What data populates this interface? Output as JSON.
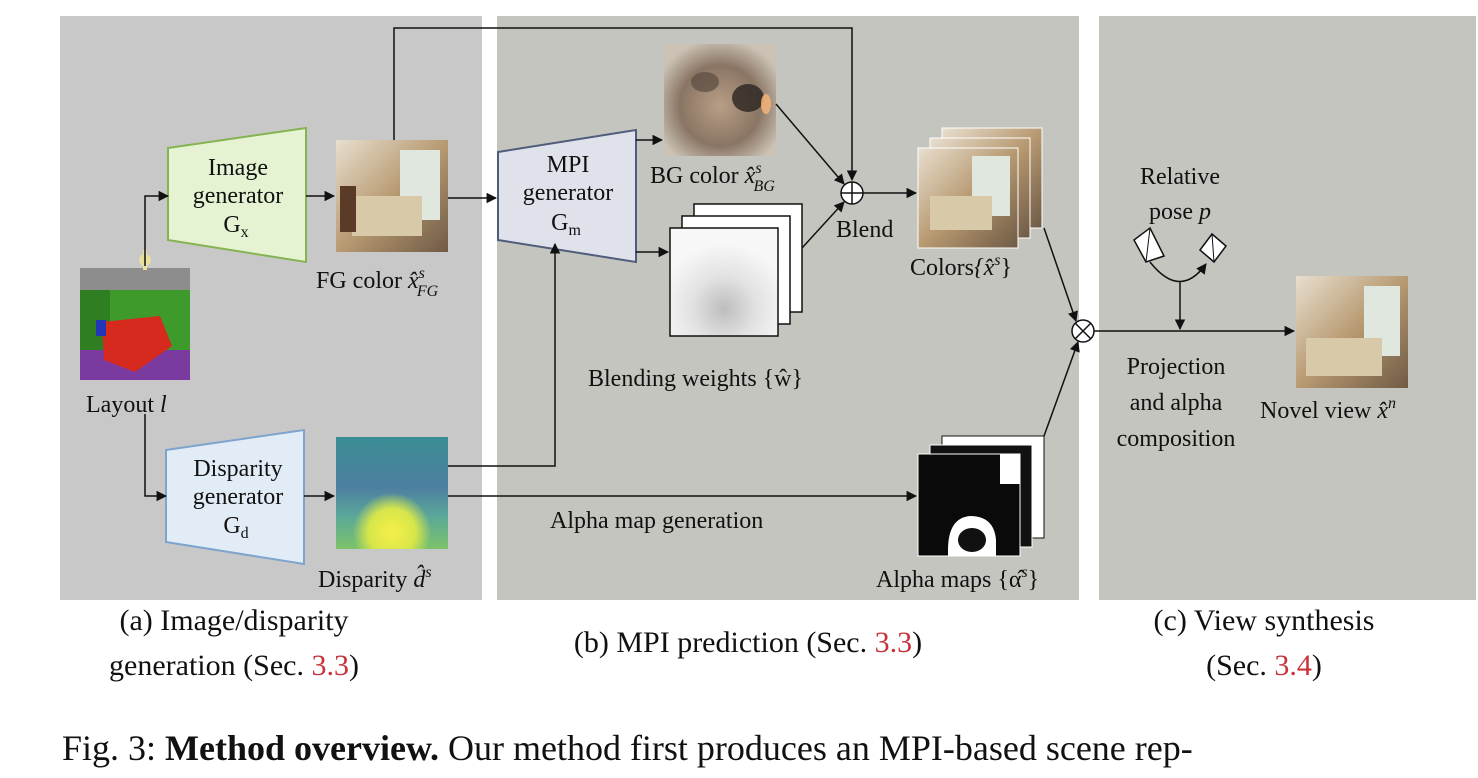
{
  "diagram": {
    "panels": {
      "a": {
        "caption_line1": "(a) Image/disparity",
        "caption_line2_text": "generation (Sec. ",
        "caption_line2_ref": "3.3",
        "caption_line2_end": ")"
      },
      "b": {
        "caption_text": "(b) MPI prediction (Sec. ",
        "caption_ref": "3.3",
        "caption_end": ")"
      },
      "c": {
        "caption_line1": "(c) View synthesis",
        "caption_line2_text": "(Sec. ",
        "caption_line2_ref": "3.4",
        "caption_line2_end": ")"
      }
    },
    "modules": {
      "image_generator": {
        "line1": "Image",
        "line2": "generator",
        "symbol": "G",
        "sub": "x"
      },
      "disparity_generator": {
        "line1": "Disparity",
        "line2": "generator",
        "symbol": "G",
        "sub": "d"
      },
      "mpi_generator": {
        "line1": "MPI",
        "line2": "generator",
        "symbol": "G",
        "sub": "m"
      }
    },
    "labels": {
      "layout": "Layout ",
      "layout_var": "l",
      "fg_color": "FG color ",
      "fg_var": "x̂",
      "fg_sup": "s",
      "fg_sub": "FG",
      "bg_color": "BG color ",
      "bg_var": "x̂",
      "bg_sup": "s",
      "bg_sub": "BG",
      "blend": "Blend",
      "colors": "Colors",
      "colors_set": "{x̂",
      "colors_sup": "s",
      "colors_close": "}",
      "blending_weights": "Blending weights {ŵ}",
      "disparity": "Disparity ",
      "disparity_var": "d̂",
      "disparity_sup": "s",
      "alpha_map_generation": "Alpha map generation",
      "alpha_maps": "Alpha maps {α̂",
      "alpha_sup": "s",
      "alpha_close": "}",
      "relative_pose_1": "Relative",
      "relative_pose_2": "pose ",
      "relative_pose_var": "p",
      "projection_1": "Projection",
      "projection_2": "and alpha",
      "projection_3": "composition",
      "novel_view": "Novel view ",
      "novel_var": "x̂",
      "novel_sup": "n"
    },
    "colors": {
      "panel_a_bg": "#c8c8c8",
      "panel_bc_bg": "#c3c5be",
      "image_gen_fill": "#e5f3d2",
      "image_gen_stroke": "#86b352",
      "disp_gen_fill": "#e1ecf7",
      "disp_gen_stroke": "#7ea4cd",
      "mpi_gen_fill": "#dfe2ea",
      "mpi_gen_stroke": "#4f5d7a",
      "ref_red": "#c8333a"
    }
  },
  "figure_caption": {
    "prefix": "Fig. 3: ",
    "bold": "Method overview.",
    "text": " Our method first produces an MPI-based scene rep-"
  }
}
